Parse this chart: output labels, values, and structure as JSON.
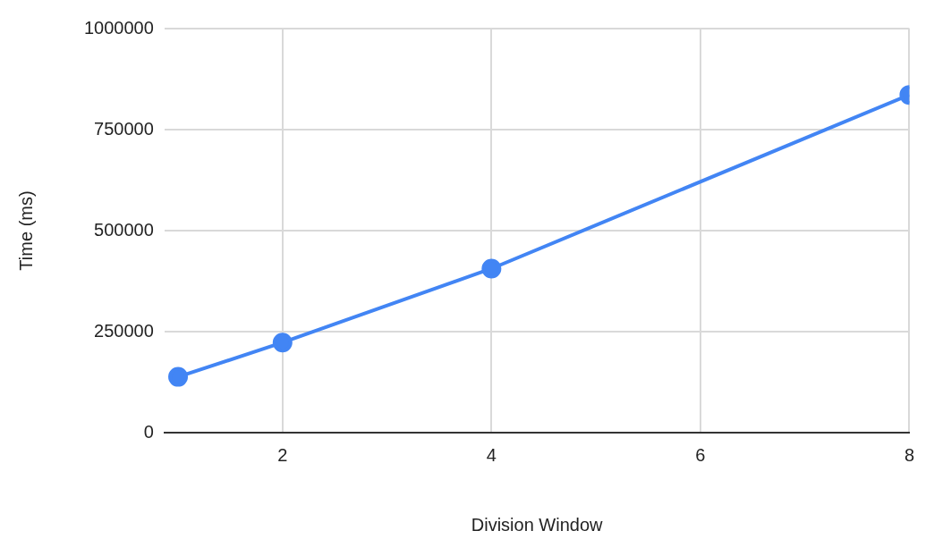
{
  "chart_data": {
    "type": "line",
    "xlabel": "Division Window",
    "ylabel": "Time (ms)",
    "x": [
      1,
      2,
      4,
      8
    ],
    "series": [
      {
        "color": "#4285f4",
        "values": [
          138000,
          223000,
          406000,
          836000
        ]
      }
    ],
    "xlim": [
      0.87,
      8
    ],
    "xticks": [
      2,
      4,
      6,
      8
    ],
    "ylim": [
      0,
      1000000
    ],
    "yticks": [
      0,
      250000,
      500000,
      750000,
      1000000
    ],
    "grid": true,
    "marker": "circle",
    "line_style": "solid",
    "legend": false
  }
}
